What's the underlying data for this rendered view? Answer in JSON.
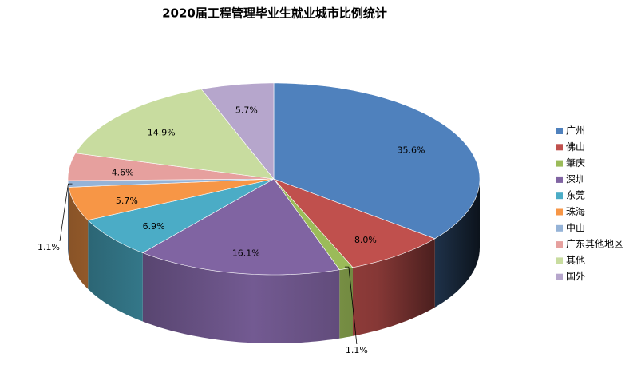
{
  "chart_data": {
    "type": "pie3d",
    "title": "2020届工程管理毕业生就业城市比例统计",
    "categories": [
      "广州",
      "佛山",
      "肇庆",
      "深圳",
      "东莞",
      "珠海",
      "中山",
      "广东其他地区",
      "其他",
      "国外"
    ],
    "values": [
      35.6,
      8.0,
      1.1,
      16.1,
      6.9,
      5.7,
      1.1,
      4.6,
      14.9,
      5.7
    ],
    "value_labels": [
      "35.6%",
      "8.0%",
      "1.1%",
      "16.1%",
      "6.9%",
      "5.7%",
      "1.1%",
      "4.6%",
      "14.9%",
      "5.7%"
    ],
    "colors": [
      "#4f81bd",
      "#c0504d",
      "#9bbb59",
      "#8064a2",
      "#4bacc6",
      "#f79646",
      "#95b3d7",
      "#e6a09e",
      "#c8dc9f",
      "#b6a6cc"
    ],
    "legend": "right"
  }
}
